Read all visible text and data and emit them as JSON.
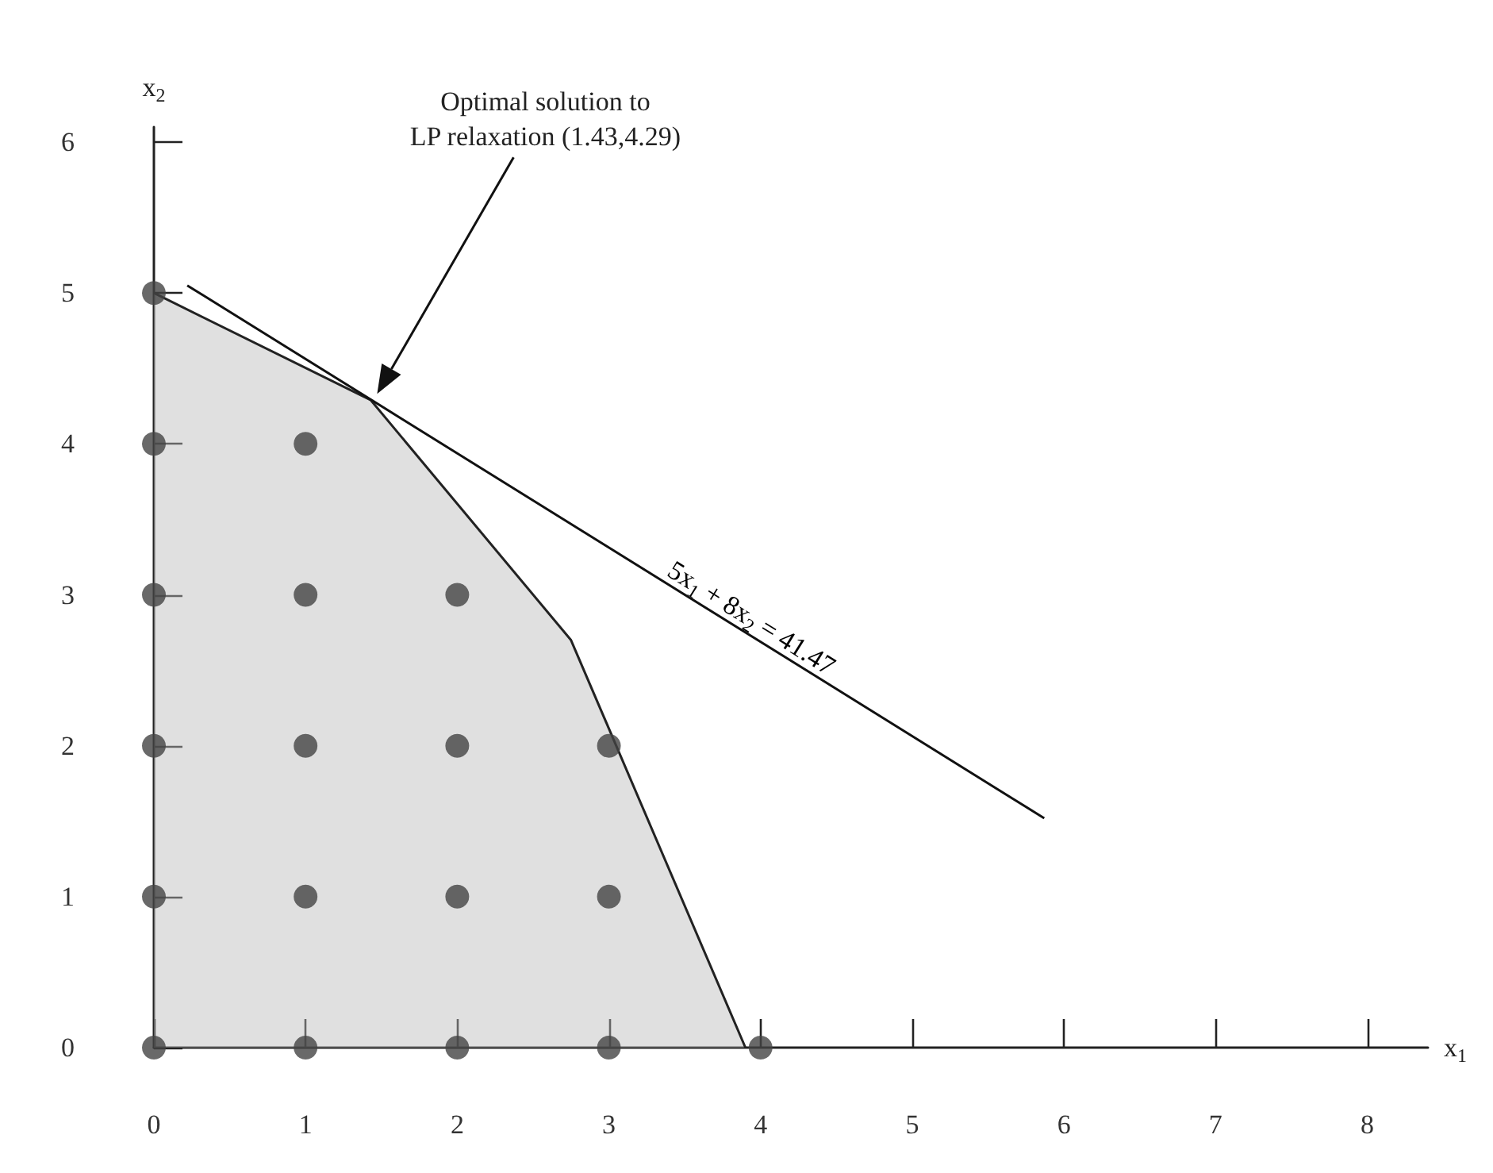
{
  "chart_data": {
    "type": "scatter",
    "xlabel": "x$_{1}$",
    "ylabel": "x$_{2}$",
    "xlim": [
      0,
      8.4
    ],
    "xticks": [
      0,
      1,
      2,
      3,
      4,
      5,
      6,
      7,
      8
    ],
    "ylim": [
      0,
      6.1
    ],
    "yticks": [
      0,
      1,
      2,
      3,
      4,
      5,
      6
    ],
    "grid": false,
    "legend": false,
    "annotations": [
      "Optimal solution to\nLP relaxation (1.43,4.29)"
    ],
    "series": [
      {
        "type": "area",
        "color": "#bbbbbb",
        "x": [
          0,
          1.43,
          2.75,
          3.9
        ],
        "values": [
          5,
          4.29,
          2.7,
          0
        ]
      },
      {
        "marker": "circle",
        "color": "#444444",
        "x": [
          0,
          0,
          0,
          0,
          0,
          0,
          1,
          1,
          1,
          1,
          1,
          2,
          2,
          2,
          2,
          3,
          3,
          3,
          4
        ],
        "values": [
          0,
          1,
          2,
          3,
          4,
          5,
          0,
          1,
          2,
          3,
          4,
          0,
          1,
          2,
          3,
          0,
          1,
          2,
          0
        ]
      },
      {
        "type": "line",
        "name": "5x$_{1}$ + 8x$_{2}$ = 41.47",
        "color": "#111111",
        "x": [
          0.22,
          5.87
        ],
        "values": [
          5.05,
          1.52
        ]
      }
    ]
  }
}
